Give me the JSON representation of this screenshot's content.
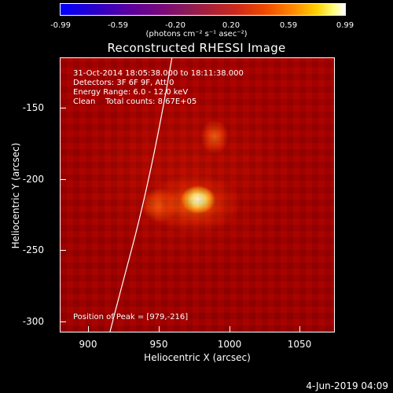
{
  "colorbar": {
    "ticks": [
      "-0.99",
      "-0.59",
      "-0.20",
      "0.20",
      "0.59",
      "0.99"
    ],
    "unit": "(photons cm⁻² s⁻¹ asec⁻²)"
  },
  "title": "Reconstructed RHESSI Image",
  "plot": {
    "line1": "31-Oct-2014 18:05:38.000 to 18:11:38.000",
    "line2": "Detectors: 3F 6F 9F, Att 0",
    "line3": "Energy Range: 6.0 - 12.0 keV",
    "line4": "Clean    Total counts: 8.67E+05",
    "peak": "Position of Peak = [979,-216]"
  },
  "axes": {
    "xlabel": "Heliocentric X (arcsec)",
    "ylabel": "Heliocentric Y (arcsec)",
    "xticks": [
      "900",
      "950",
      "1000",
      "1050"
    ],
    "yticks": [
      "-150",
      "-200",
      "-250",
      "-300"
    ]
  },
  "footer": {
    "date": "4-Jun-2019 04:09"
  }
}
